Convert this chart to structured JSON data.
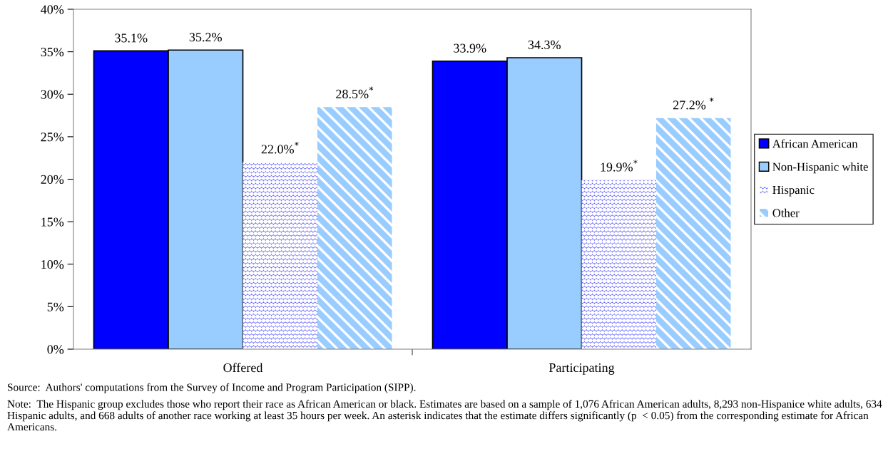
{
  "chart_data": {
    "type": "bar",
    "categories": [
      "Offered",
      "Participating"
    ],
    "series": [
      {
        "name": "African American",
        "color": "#0000ff",
        "values": [
          35.1,
          33.9
        ],
        "value_labels": [
          "35.1%",
          "33.9%"
        ]
      },
      {
        "name": "Non-Hispanic white",
        "color": "#99ccff",
        "values": [
          35.2,
          34.3
        ],
        "value_labels": [
          "35.2%",
          "34.3%"
        ]
      },
      {
        "name": "Hispanic",
        "color": "#6666ff",
        "values": [
          22.0,
          19.9
        ],
        "value_labels": [
          "22.0%$^{*}$",
          "19.9%$^{*}$"
        ]
      },
      {
        "name": "Other",
        "color": "#99ccff",
        "values": [
          28.5,
          27.2
        ],
        "value_labels": [
          "28.5%$^{*}$",
          "27.2% $^{*}$"
        ]
      }
    ],
    "ylim": [
      0,
      40
    ],
    "yticks": [
      {
        "value": 0,
        "label": "0%"
      },
      {
        "value": 5,
        "label": "5%"
      },
      {
        "value": 10,
        "label": "10%"
      },
      {
        "value": 15,
        "label": "15%"
      },
      {
        "value": 20,
        "label": "20%"
      },
      {
        "value": 25,
        "label": "25%"
      },
      {
        "value": 30,
        "label": "30%"
      },
      {
        "value": 35,
        "label": "35%"
      },
      {
        "value": 40,
        "label": "40%"
      }
    ],
    "legend": "right",
    "annotations": [
      "Source:  Authors' computations from the Survey of Income and Program Participation (SIPP).",
      "Note:  The Hispanic group excludes those who report their race as African American or black. Estimates are based on a sample of 1,076 African American adults, 8,293 non-Hispanice white adults, 634 Hispanic adults, and 668 adults of another race working at least 35 hours per week. An asterisk indicates that the estimate differs significantly (p  < 0.05) from the corresponding estimate for African Americans."
    ]
  }
}
